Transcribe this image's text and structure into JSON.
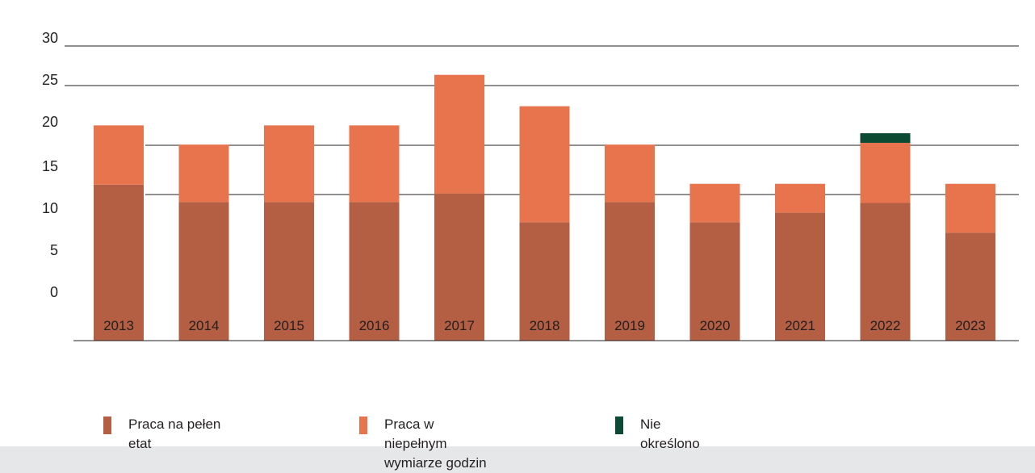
{
  "chart_data": {
    "type": "bar",
    "stacked": true,
    "categories": [
      "2013",
      "2014",
      "2015",
      "2016",
      "2017",
      "2018",
      "2019",
      "2020",
      "2021",
      "2022",
      "2023"
    ],
    "series": [
      {
        "name": "Praca na pełen etat",
        "color": "#b45e43",
        "values": [
          14,
          12,
          12,
          12,
          13,
          9.7,
          12,
          9.7,
          10.8,
          11.9,
          8.5
        ]
      },
      {
        "name": "Praca w niepełnym wymiarze godzin",
        "color": "#e8744e",
        "values": [
          6.8,
          6.6,
          8.8,
          8.8,
          13.6,
          13.3,
          6.6,
          4.4,
          3.3,
          6.9,
          5.6
        ]
      },
      {
        "name": "Nie określono",
        "color": "#0c4a33",
        "values": [
          0,
          0,
          0,
          0,
          0,
          0,
          0,
          0,
          0,
          1.1,
          0
        ]
      }
    ],
    "yticks": [
      0,
      5,
      10,
      15,
      20,
      25,
      30
    ],
    "ylim": [
      0,
      30
    ],
    "title": "",
    "xlabel": "",
    "ylabel": "",
    "grid": true,
    "legend": "bottom"
  },
  "legend": {
    "items": [
      {
        "label": "Praca na pełen\netat",
        "color": "#b45e43"
      },
      {
        "label": "Praca w\nniepełnym\nwymiarze godzin",
        "color": "#e8744e"
      },
      {
        "label": "Nie\nokreślono",
        "color": "#0c4a33"
      }
    ]
  }
}
